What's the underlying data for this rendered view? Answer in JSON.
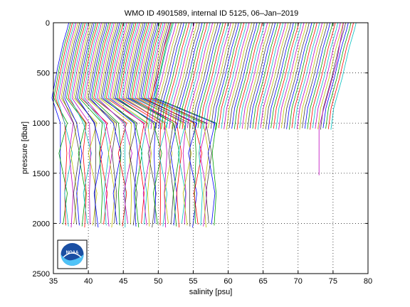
{
  "chart_data": {
    "type": "line",
    "title": "WMO ID 4901589, internal ID 5125, 06–Jan–2019",
    "xlabel": "salinity [psu]",
    "ylabel": "pressure [dbar]",
    "xlim": [
      35,
      80
    ],
    "ylim": [
      0,
      2500
    ],
    "y_inverted": true,
    "grid": true,
    "grid_style": "dotted",
    "x_ticks": [
      "35",
      "40",
      "45",
      "50",
      "55",
      "60",
      "65",
      "70",
      "75",
      "80"
    ],
    "y_ticks": [
      "0",
      "500",
      "1000",
      "1500",
      "2000",
      "2500"
    ],
    "profiles": {
      "count": 130,
      "series_colors": [
        "#0000ff",
        "#00a000",
        "#ff0000",
        "#00bfbf",
        "#bf00bf",
        "#bfbf00",
        "#404040"
      ],
      "deep_group": {
        "count": 58,
        "surface_salinity_range": [
          36.2,
          51.0
        ],
        "bottom_pressure_range": [
          2000,
          2040
        ],
        "deep_salinity_range": [
          36.0,
          58.0
        ]
      },
      "shallow_group": {
        "count": 72,
        "surface_salinity_range": [
          51.0,
          77.5
        ],
        "bottom_pressure": 1050
      },
      "outlier": {
        "salinity": 73.0,
        "bottom_pressure": 1520
      }
    },
    "logo": {
      "text": "NOAA",
      "position": "bottom-left"
    }
  }
}
